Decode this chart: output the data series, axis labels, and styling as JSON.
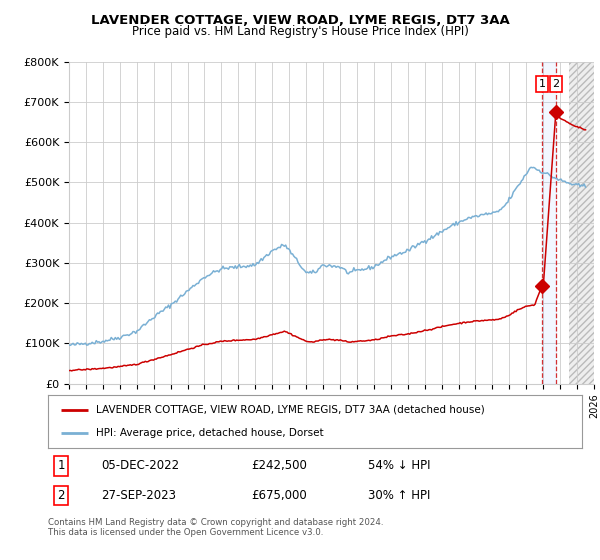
{
  "title": "LAVENDER COTTAGE, VIEW ROAD, LYME REGIS, DT7 3AA",
  "subtitle": "Price paid vs. HM Land Registry's House Price Index (HPI)",
  "legend_line1": "LAVENDER COTTAGE, VIEW ROAD, LYME REGIS, DT7 3AA (detached house)",
  "legend_line2": "HPI: Average price, detached house, Dorset",
  "transaction1_date": "05-DEC-2022",
  "transaction1_price": "£242,500",
  "transaction1_hpi": "54% ↓ HPI",
  "transaction1_x": 2022.92,
  "transaction1_y": 242500,
  "transaction2_date": "27-SEP-2023",
  "transaction2_price": "£675,000",
  "transaction2_hpi": "30% ↑ HPI",
  "transaction2_x": 2023.75,
  "transaction2_y": 675000,
  "ylim": [
    0,
    800000
  ],
  "xlim": [
    1995,
    2026
  ],
  "yticks": [
    0,
    100000,
    200000,
    300000,
    400000,
    500000,
    600000,
    700000,
    800000
  ],
  "ytick_labels": [
    "£0",
    "£100K",
    "£200K",
    "£300K",
    "£400K",
    "£500K",
    "£600K",
    "£700K",
    "£800K"
  ],
  "red_line_color": "#cc0000",
  "blue_line_color": "#7ab0d4",
  "hatch_start": 2024.5,
  "footer_text": "Contains HM Land Registry data © Crown copyright and database right 2024.\nThis data is licensed under the Open Government Licence v3.0.",
  "background_color": "#ffffff",
  "grid_color": "#cccccc"
}
